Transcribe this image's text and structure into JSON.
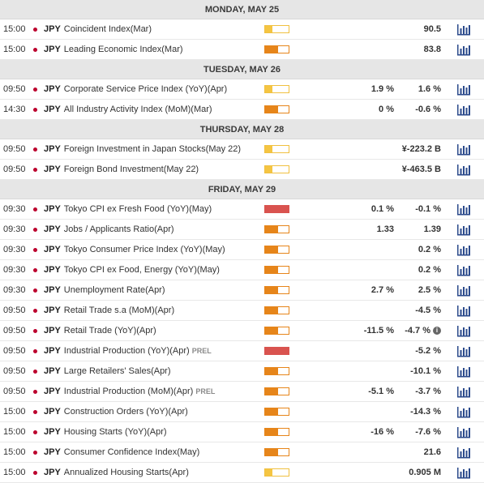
{
  "days": [
    {
      "header": "MONDAY, MAY 25",
      "rows": [
        {
          "time": "15:00",
          "currency": "JPY",
          "event": "Coincident Index(Mar)",
          "prel": "",
          "impact": "low",
          "actual": "",
          "consensus": "90.5",
          "info": false
        },
        {
          "time": "15:00",
          "currency": "JPY",
          "event": "Leading Economic Index(Mar)",
          "prel": "",
          "impact": "medium",
          "actual": "",
          "consensus": "83.8",
          "info": false
        }
      ]
    },
    {
      "header": "TUESDAY, MAY 26",
      "rows": [
        {
          "time": "09:50",
          "currency": "JPY",
          "event": "Corporate Service Price Index (YoY)(Apr)",
          "prel": "",
          "impact": "low",
          "actual": "1.9 %",
          "consensus": "1.6 %",
          "info": false
        },
        {
          "time": "14:30",
          "currency": "JPY",
          "event": "All Industry Activity Index (MoM)(Mar)",
          "prel": "",
          "impact": "medium",
          "actual": "0 %",
          "consensus": "-0.6 %",
          "info": false
        }
      ]
    },
    {
      "header": "THURSDAY, MAY 28",
      "rows": [
        {
          "time": "09:50",
          "currency": "JPY",
          "event": "Foreign Investment in Japan Stocks(May 22)",
          "prel": "",
          "impact": "low",
          "actual": "",
          "consensus": "¥-223.2 B",
          "info": false
        },
        {
          "time": "09:50",
          "currency": "JPY",
          "event": "Foreign Bond Investment(May 22)",
          "prel": "",
          "impact": "low",
          "actual": "",
          "consensus": "¥-463.5 B",
          "info": false
        }
      ]
    },
    {
      "header": "FRIDAY, MAY 29",
      "rows": [
        {
          "time": "09:30",
          "currency": "JPY",
          "event": "Tokyo CPI ex Fresh Food (YoY)(May)",
          "prel": "",
          "impact": "high",
          "actual": "0.1 %",
          "consensus": "-0.1 %",
          "info": false
        },
        {
          "time": "09:30",
          "currency": "JPY",
          "event": "Jobs / Applicants Ratio(Apr)",
          "prel": "",
          "impact": "medium",
          "actual": "1.33",
          "consensus": "1.39",
          "info": false
        },
        {
          "time": "09:30",
          "currency": "JPY",
          "event": "Tokyo Consumer Price Index (YoY)(May)",
          "prel": "",
          "impact": "medium",
          "actual": "",
          "consensus": "0.2 %",
          "info": false
        },
        {
          "time": "09:30",
          "currency": "JPY",
          "event": "Tokyo CPI ex Food, Energy (YoY)(May)",
          "prel": "",
          "impact": "medium",
          "actual": "",
          "consensus": "0.2 %",
          "info": false
        },
        {
          "time": "09:30",
          "currency": "JPY",
          "event": "Unemployment Rate(Apr)",
          "prel": "",
          "impact": "medium",
          "actual": "2.7 %",
          "consensus": "2.5 %",
          "info": false
        },
        {
          "time": "09:50",
          "currency": "JPY",
          "event": "Retail Trade s.a (MoM)(Apr)",
          "prel": "",
          "impact": "medium",
          "actual": "",
          "consensus": "-4.5 %",
          "info": false
        },
        {
          "time": "09:50",
          "currency": "JPY",
          "event": "Retail Trade (YoY)(Apr)",
          "prel": "",
          "impact": "medium",
          "actual": "-11.5 %",
          "consensus": "-4.7 %",
          "info": true
        },
        {
          "time": "09:50",
          "currency": "JPY",
          "event": "Industrial Production (YoY)(Apr)",
          "prel": "PREL",
          "impact": "high",
          "actual": "",
          "consensus": "-5.2 %",
          "info": false
        },
        {
          "time": "09:50",
          "currency": "JPY",
          "event": "Large Retailers' Sales(Apr)",
          "prel": "",
          "impact": "medium",
          "actual": "",
          "consensus": "-10.1 %",
          "info": false
        },
        {
          "time": "09:50",
          "currency": "JPY",
          "event": "Industrial Production (MoM)(Apr)",
          "prel": "PREL",
          "impact": "medium",
          "actual": "-5.1 %",
          "consensus": "-3.7 %",
          "info": false
        },
        {
          "time": "15:00",
          "currency": "JPY",
          "event": "Construction Orders (YoY)(Apr)",
          "prel": "",
          "impact": "medium",
          "actual": "",
          "consensus": "-14.3 %",
          "info": false
        },
        {
          "time": "15:00",
          "currency": "JPY",
          "event": "Housing Starts (YoY)(Apr)",
          "prel": "",
          "impact": "medium",
          "actual": "-16 %",
          "consensus": "-7.6 %",
          "info": false
        },
        {
          "time": "15:00",
          "currency": "JPY",
          "event": "Consumer Confidence Index(May)",
          "prel": "",
          "impact": "medium",
          "actual": "",
          "consensus": "21.6",
          "info": false
        },
        {
          "time": "15:00",
          "currency": "JPY",
          "event": "Annualized Housing Starts(Apr)",
          "prel": "",
          "impact": "low",
          "actual": "",
          "consensus": "0.905 M",
          "info": false
        }
      ]
    }
  ],
  "icons": {
    "chart": "bar-chart-icon",
    "flag": "japan-flag-icon",
    "info": "info-icon"
  },
  "colors": {
    "low": "#f5c542",
    "medium": "#e6851a",
    "high": "#d9534f",
    "chart_icon": "#2b4a8b"
  }
}
